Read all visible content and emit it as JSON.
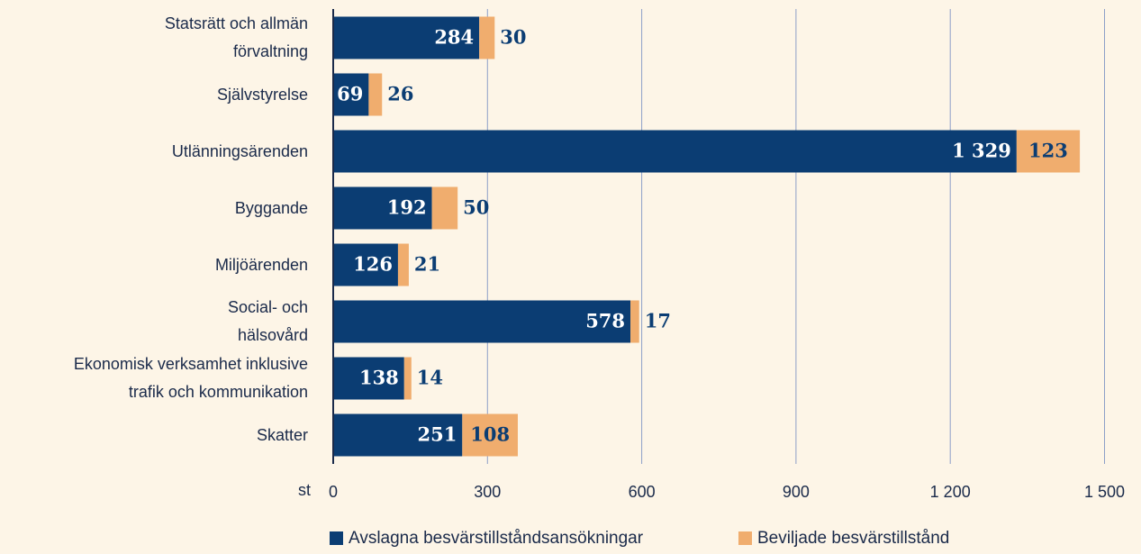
{
  "chart_data": {
    "type": "stacked_barh",
    "categories": [
      "Statsrätt och allmän\nförvaltning",
      "Självstyrelse",
      "Utlänningsärenden",
      "Byggande",
      "Miljöärenden",
      "Social- och\nhälsovård",
      "Ekonomisk verksamhet inklusive\ntrafik och kommunikation",
      "Skatter"
    ],
    "series": [
      {
        "name": "Avslagna besvärstillståndsansökningar",
        "color": "#0b3d73",
        "values": [
          284,
          69,
          1329,
          192,
          126,
          578,
          138,
          251
        ],
        "value_labels": [
          "284",
          "69",
          "1 329",
          "192",
          "126",
          "578",
          "138",
          "251"
        ]
      },
      {
        "name": "Beviljade besvärstillstånd",
        "color": "#f0ad6e",
        "values": [
          30,
          26,
          123,
          50,
          21,
          17,
          14,
          108
        ]
      }
    ],
    "xlabel": "st",
    "xlim": [
      0,
      1500
    ],
    "xticks": [
      0,
      300,
      600,
      900,
      {
        "value": 1200,
        "label": "1 200"
      },
      {
        "value": 1500,
        "label": "1 500"
      }
    ],
    "grid": true
  }
}
